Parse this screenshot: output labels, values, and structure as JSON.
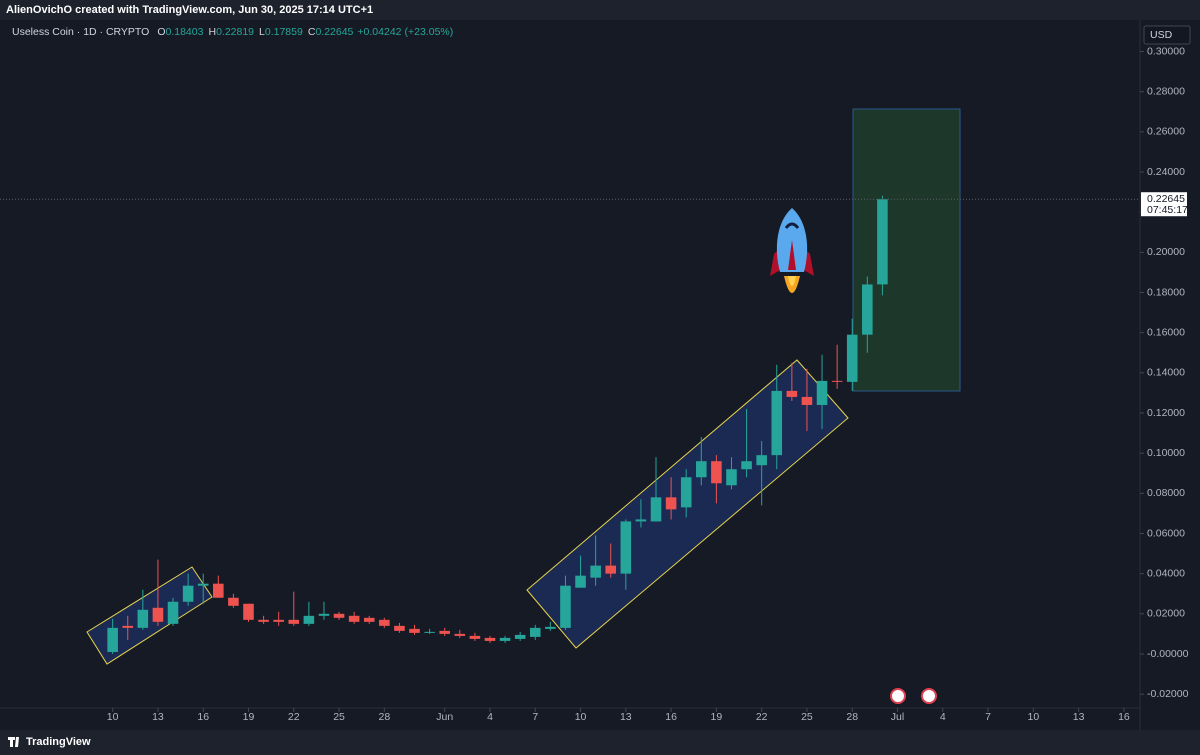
{
  "header": "AlienOvichO created with TradingView.com, Jun 30, 2025 17:14 UTC+1",
  "footer": "TradingView",
  "chart_data": {
    "type": "candlestick",
    "legend": {
      "symbol": "Useless Coin · 1D · CRYPTO",
      "fields": [
        {
          "key": "O",
          "value": 0.18403
        },
        {
          "key": "H",
          "value": 0.22819
        },
        {
          "key": "L",
          "value": 0.17859
        },
        {
          "key": "C",
          "value": 0.22645
        }
      ],
      "change": "+0.04242",
      "change_pct": "(+23.05%)"
    },
    "currency": "USD",
    "last_price": {
      "label": "0.22645",
      "countdown": "07:45:17"
    },
    "up_color": "#26a69a",
    "down_color": "#ef5350",
    "x": [
      "2025-05-10",
      "2025-05-11",
      "2025-05-12",
      "2025-05-13",
      "2025-05-14",
      "2025-05-15",
      "2025-05-16",
      "2025-05-17",
      "2025-05-18",
      "2025-05-19",
      "2025-05-20",
      "2025-05-21",
      "2025-05-22",
      "2025-05-23",
      "2025-05-24",
      "2025-05-25",
      "2025-05-26",
      "2025-05-27",
      "2025-05-28",
      "2025-05-29",
      "2025-05-30",
      "2025-05-31",
      "2025-06-01",
      "2025-06-02",
      "2025-06-03",
      "2025-06-04",
      "2025-06-05",
      "2025-06-06",
      "2025-06-07",
      "2025-06-08",
      "2025-06-09",
      "2025-06-10",
      "2025-06-11",
      "2025-06-12",
      "2025-06-13",
      "2025-06-14",
      "2025-06-15",
      "2025-06-16",
      "2025-06-17",
      "2025-06-18",
      "2025-06-19",
      "2025-06-20",
      "2025-06-21",
      "2025-06-22",
      "2025-06-23",
      "2025-06-24",
      "2025-06-25",
      "2025-06-26",
      "2025-06-27",
      "2025-06-28",
      "2025-06-29",
      "2025-06-30"
    ],
    "open": [
      0.001,
      0.014,
      0.013,
      0.023,
      0.015,
      0.026,
      0.034,
      0.035,
      0.028,
      0.025,
      0.017,
      0.017,
      0.017,
      0.015,
      0.019,
      0.02,
      0.019,
      0.018,
      0.017,
      0.014,
      0.0125,
      0.0105,
      0.0115,
      0.01,
      0.009,
      0.008,
      0.0065,
      0.0075,
      0.0085,
      0.0125,
      0.013,
      0.033,
      0.038,
      0.044,
      0.04,
      0.066,
      0.066,
      0.078,
      0.073,
      0.088,
      0.096,
      0.084,
      0.092,
      0.094,
      0.099,
      0.131,
      0.128,
      0.124,
      0.136,
      0.1355,
      0.159,
      0.18403
    ],
    "high": [
      0.0175,
      0.019,
      0.032,
      0.047,
      0.028,
      0.04,
      0.04,
      0.039,
      0.03,
      0.025,
      0.019,
      0.021,
      0.031,
      0.026,
      0.026,
      0.021,
      0.021,
      0.019,
      0.018,
      0.0155,
      0.0145,
      0.0125,
      0.013,
      0.012,
      0.0105,
      0.009,
      0.009,
      0.011,
      0.0145,
      0.016,
      0.039,
      0.049,
      0.059,
      0.055,
      0.067,
      0.077,
      0.098,
      0.088,
      0.092,
      0.108,
      0.099,
      0.098,
      0.122,
      0.106,
      0.144,
      0.145,
      0.142,
      0.149,
      0.154,
      0.167,
      0.188,
      0.22819
    ],
    "low": [
      0.0,
      0.007,
      0.012,
      0.014,
      0.014,
      0.024,
      0.025,
      0.028,
      0.023,
      0.016,
      0.015,
      0.014,
      0.014,
      0.014,
      0.017,
      0.017,
      0.015,
      0.015,
      0.013,
      0.0105,
      0.0095,
      0.01,
      0.009,
      0.008,
      0.0065,
      0.0055,
      0.0055,
      0.0065,
      0.007,
      0.0115,
      0.012,
      0.033,
      0.034,
      0.038,
      0.032,
      0.063,
      0.066,
      0.067,
      0.068,
      0.084,
      0.075,
      0.082,
      0.088,
      0.074,
      0.092,
      0.126,
      0.111,
      0.112,
      0.132,
      0.131,
      0.15,
      0.17859
    ],
    "close": [
      0.013,
      0.013,
      0.022,
      0.016,
      0.026,
      0.034,
      0.035,
      0.028,
      0.024,
      0.017,
      0.016,
      0.016,
      0.015,
      0.019,
      0.02,
      0.018,
      0.016,
      0.016,
      0.014,
      0.0115,
      0.0105,
      0.011,
      0.01,
      0.009,
      0.0075,
      0.0065,
      0.008,
      0.0095,
      0.013,
      0.0135,
      0.034,
      0.039,
      0.044,
      0.04,
      0.066,
      0.067,
      0.078,
      0.072,
      0.088,
      0.096,
      0.085,
      0.092,
      0.096,
      0.099,
      0.131,
      0.128,
      0.124,
      0.136,
      0.1355,
      0.159,
      0.184,
      0.22645
    ],
    "ylim": [
      -0.0279,
      0.3157
    ],
    "yticks": [
      {
        "value": 0.3,
        "label": "0.30000"
      },
      {
        "value": 0.28,
        "label": "0.28000"
      },
      {
        "value": 0.26,
        "label": "0.26000"
      },
      {
        "value": 0.24,
        "label": "0.24000"
      },
      {
        "value": 0.22,
        "label": "0.22000"
      },
      {
        "value": 0.2,
        "label": "0.20000"
      },
      {
        "value": 0.18,
        "label": "0.18000"
      },
      {
        "value": 0.16,
        "label": "0.16000"
      },
      {
        "value": 0.14,
        "label": "0.14000"
      },
      {
        "value": 0.12,
        "label": "0.12000"
      },
      {
        "value": 0.1,
        "label": "0.10000"
      },
      {
        "value": 0.08,
        "label": "0.08000"
      },
      {
        "value": 0.06,
        "label": "0.06000"
      },
      {
        "value": 0.04,
        "label": "0.04000"
      },
      {
        "value": 0.02,
        "label": "0.02000"
      },
      {
        "value": 0,
        "label": "-0.00000"
      },
      {
        "value": -0.02,
        "label": "-0.02000"
      }
    ],
    "xlim": [
      "2025-05-03",
      "2025-07-17"
    ],
    "xticks": [
      {
        "value": "2025-05-10",
        "label": "10"
      },
      {
        "value": "2025-05-13",
        "label": "13"
      },
      {
        "value": "2025-05-16",
        "label": "16"
      },
      {
        "value": "2025-05-19",
        "label": "19"
      },
      {
        "value": "2025-05-22",
        "label": "22"
      },
      {
        "value": "2025-05-25",
        "label": "25"
      },
      {
        "value": "2025-05-28",
        "label": "28"
      },
      {
        "value": "2025-06-01",
        "label": "Jun"
      },
      {
        "value": "2025-06-04",
        "label": "4"
      },
      {
        "value": "2025-06-07",
        "label": "7"
      },
      {
        "value": "2025-06-10",
        "label": "10"
      },
      {
        "value": "2025-06-13",
        "label": "13"
      },
      {
        "value": "2025-06-16",
        "label": "16"
      },
      {
        "value": "2025-06-19",
        "label": "19"
      },
      {
        "value": "2025-06-22",
        "label": "22"
      },
      {
        "value": "2025-06-25",
        "label": "25"
      },
      {
        "value": "2025-06-28",
        "label": "28"
      },
      {
        "value": "2025-07-01",
        "label": "Jul"
      },
      {
        "value": "2025-07-04",
        "label": "4"
      },
      {
        "value": "2025-07-07",
        "label": "7"
      },
      {
        "value": "2025-07-10",
        "label": "10"
      },
      {
        "value": "2025-07-13",
        "label": "13"
      },
      {
        "value": "2025-07-16",
        "label": "16"
      }
    ]
  }
}
